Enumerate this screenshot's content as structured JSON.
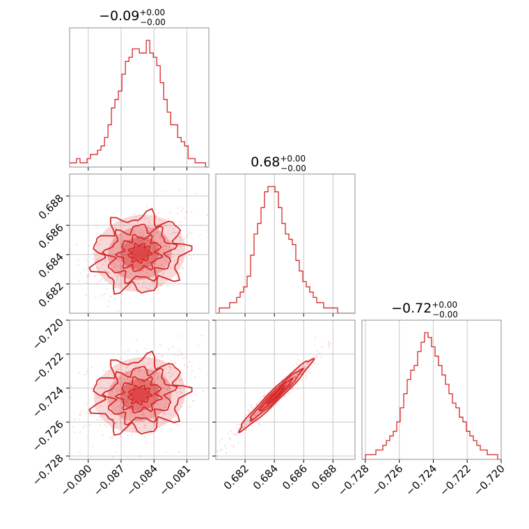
{
  "chart_data": {
    "type": "corner",
    "color": "#d62728",
    "grid": true,
    "params": [
      {
        "title_value": "−0.09",
        "title_plus": "+0.00",
        "title_minus": "−0.00",
        "range": [
          -0.0917,
          -0.079
        ],
        "ticks": [
          -0.09,
          -0.087,
          -0.084,
          -0.081
        ],
        "tick_labels": [
          "−0.090",
          "−0.087",
          "−0.084",
          "−0.081"
        ],
        "hist": {
          "start": -0.0917,
          "bin_width": 0.000318,
          "counts": [
            1,
            1,
            2,
            1,
            1,
            2,
            3,
            3,
            4,
            5,
            7,
            10,
            14,
            16,
            18,
            22,
            25,
            26,
            28,
            28,
            27,
            27,
            30,
            27,
            26,
            24,
            20,
            16,
            13,
            10,
            10,
            7,
            6,
            5,
            2,
            2,
            1,
            1,
            1,
            0
          ]
        }
      },
      {
        "title_value": "0.68",
        "title_plus": "+0.00",
        "title_minus": "−0.00",
        "range": [
          0.68,
          0.6895
        ],
        "ticks": [
          0.682,
          0.684,
          0.686,
          0.688
        ],
        "tick_labels": [
          "0.682",
          "0.684",
          "0.686",
          "0.688"
        ],
        "hist": {
          "start": 0.68,
          "bin_width": 0.0002375,
          "counts": [
            0,
            1,
            1,
            1,
            2,
            2,
            3,
            4,
            5,
            7,
            11,
            15,
            17,
            20,
            23,
            24,
            24,
            23,
            20,
            17,
            15,
            14,
            13,
            10,
            8,
            6,
            5,
            4,
            3,
            2,
            2,
            1,
            1,
            1,
            1,
            0,
            0,
            0,
            0,
            0
          ]
        }
      },
      {
        "title_value": "−0.72",
        "title_plus": "+0.00",
        "title_minus": "−0.00",
        "range": [
          -0.7282,
          -0.72
        ],
        "ticks": [
          -0.728,
          -0.726,
          -0.724,
          -0.722,
          -0.72
        ],
        "tick_labels": [
          "−0.728",
          "−0.726",
          "−0.724",
          "−0.722",
          "−0.720"
        ],
        "hist": {
          "start": -0.7282,
          "bin_width": 0.000205,
          "counts": [
            0,
            1,
            1,
            1,
            2,
            2,
            3,
            4,
            5,
            6,
            8,
            11,
            14,
            17,
            19,
            20,
            23,
            25,
            27,
            26,
            24,
            22,
            20,
            18,
            16,
            14,
            12,
            11,
            9,
            8,
            6,
            5,
            4,
            3,
            2,
            2,
            1,
            1,
            1,
            0
          ]
        }
      }
    ],
    "pairs": [
      {
        "x_param": 0,
        "y_param": 1,
        "center": [
          -0.0853,
          0.6841
        ],
        "spread": [
          0.0021,
          0.0013
        ],
        "corr": 0.35
      },
      {
        "x_param": 0,
        "y_param": 2,
        "center": [
          -0.0853,
          -0.7244
        ],
        "spread": [
          0.0021,
          0.0011
        ],
        "corr": 0.3
      },
      {
        "x_param": 1,
        "y_param": 2,
        "center": [
          0.6841,
          -0.7244
        ],
        "spread": [
          0.0013,
          0.0011
        ],
        "corr": 0.97
      }
    ]
  }
}
